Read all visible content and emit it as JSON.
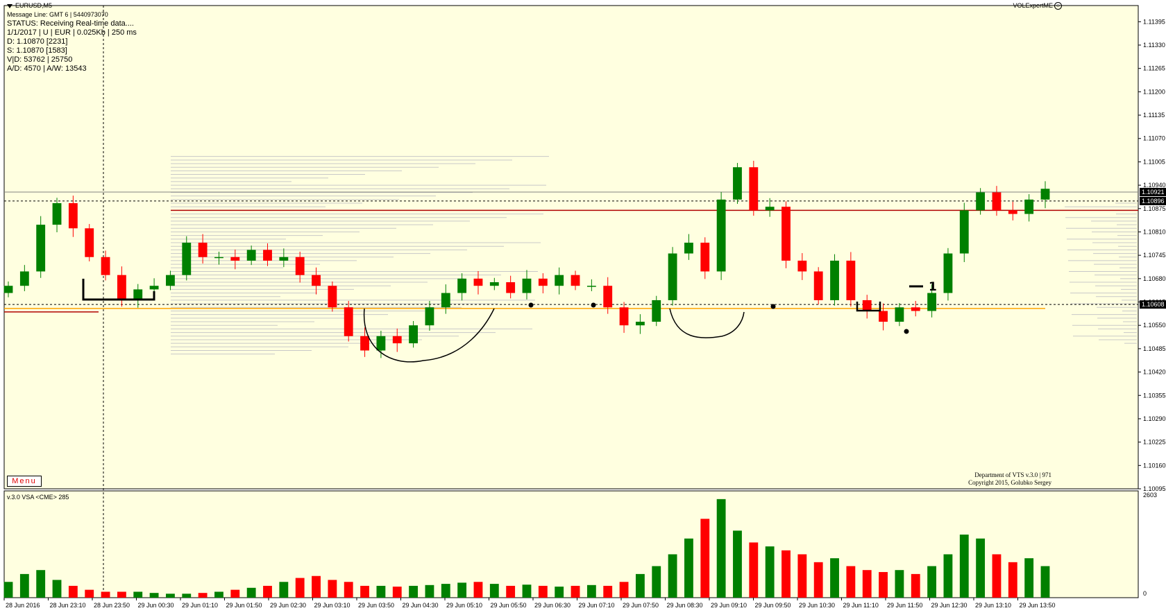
{
  "chart": {
    "symbol_title": "EURUSD,M5",
    "info_lines": [
      "Message Line: GMT 6 | 5440973070",
      "STATUS:  Receiving Real-time data....",
      "1/1/2017 | U | EUR | 0.025Kb | 250 ms",
      "D: 1.10870  [2231]",
      "S: 1.10870  [1583]",
      "V|D: 53762 | 25750",
      "A/D: 4570 | A/W: 13543"
    ],
    "expert_label": "VOLExpertME",
    "menu_label": "Menu",
    "copyright_lines": [
      "Department of VTS  v.3.0 | 971",
      "Copyright 2015, Golubko Sergey"
    ],
    "subwindow_label": "v.3.0 VSA <CME> 285",
    "annotation_label": "1",
    "colors": {
      "background": "#FFFFE0",
      "bull": "#008000",
      "bear": "#FF0000",
      "grid": "#808080",
      "axis_label_bg": "#000000",
      "support": "#FFA500",
      "resistance": "#B00000"
    }
  },
  "chart_data": [
    {
      "type": "candlestick",
      "price_ticks": [
        "1.11395",
        "1.11330",
        "1.11265",
        "1.11200",
        "1.11135",
        "1.11070",
        "1.11005",
        "1.10940",
        "1.10875",
        "1.10810",
        "1.10745",
        "1.10680",
        "1.10615",
        "1.10550",
        "1.10485",
        "1.10420",
        "1.10355",
        "1.10290",
        "1.10225",
        "1.10160",
        "1.10095"
      ],
      "time_labels": [
        "28 Jun 2016",
        "28 Jun 23:10",
        "28 Jun 23:50",
        "29 Jun 00:30",
        "29 Jun 01:10",
        "29 Jun 01:50",
        "29 Jun 02:30",
        "29 Jun 03:10",
        "29 Jun 03:50",
        "29 Jun 04:30",
        "29 Jun 05:10",
        "29 Jun 05:50",
        "29 Jun 06:30",
        "29 Jun 07:10",
        "29 Jun 07:50",
        "29 Jun 08:30",
        "29 Jun 09:10",
        "29 Jun 09:50",
        "29 Jun 10:30",
        "29 Jun 11:10",
        "29 Jun 11:50",
        "29 Jun 12:30",
        "29 Jun 13:10",
        "29 Jun 13:50"
      ],
      "ylim": [
        1.10095,
        1.1144
      ],
      "current_price": "1.10921",
      "level_prices": [
        "1.10896",
        "1.10608"
      ],
      "level_values": [
        1.10896,
        1.10608
      ],
      "support": 1.10597,
      "resistance": 1.1087,
      "close_path": [
        1.1066,
        1.107,
        1.1083,
        1.1089,
        1.1082,
        1.1074,
        1.1069,
        1.1062,
        1.1065,
        1.1066,
        1.1069,
        1.1078,
        1.1074,
        1.1074,
        1.1073,
        1.1076,
        1.1073,
        1.1074,
        1.1069,
        1.1066,
        1.106,
        1.1052,
        1.1048,
        1.1052,
        1.105,
        1.1055,
        1.106,
        1.1064,
        1.1068,
        1.1066,
        1.1067,
        1.1064,
        1.1068,
        1.1066,
        1.1069,
        1.1066,
        1.1066,
        1.106,
        1.1055,
        1.1056,
        1.1062,
        1.1075,
        1.1078,
        1.107,
        1.109,
        1.1099,
        1.1087,
        1.1088,
        1.1073,
        1.107,
        1.1062,
        1.1073,
        1.1062,
        1.1059,
        1.1056,
        1.106,
        1.1059,
        1.1064,
        1.1075,
        1.1087,
        1.1092,
        1.1087,
        1.1086,
        1.109,
        1.1093
      ]
    },
    {
      "type": "bar",
      "name": "v.3.0 VSA <CME> 285",
      "ylim": [
        0,
        2603
      ],
      "tick_labels": [
        "2603",
        "0"
      ],
      "volume_path": [
        400,
        600,
        700,
        450,
        300,
        200,
        150,
        150,
        150,
        120,
        100,
        100,
        120,
        150,
        200,
        250,
        300,
        400,
        500,
        550,
        450,
        400,
        300,
        300,
        280,
        300,
        320,
        350,
        380,
        400,
        350,
        300,
        330,
        300,
        280,
        300,
        320,
        300,
        400,
        600,
        800,
        1100,
        1500,
        2000,
        2500,
        1700,
        1400,
        1300,
        1200,
        1100,
        900,
        1000,
        800,
        700,
        650,
        700,
        600,
        800,
        1100,
        1600,
        1500,
        1100,
        900,
        1000,
        800
      ]
    }
  ]
}
